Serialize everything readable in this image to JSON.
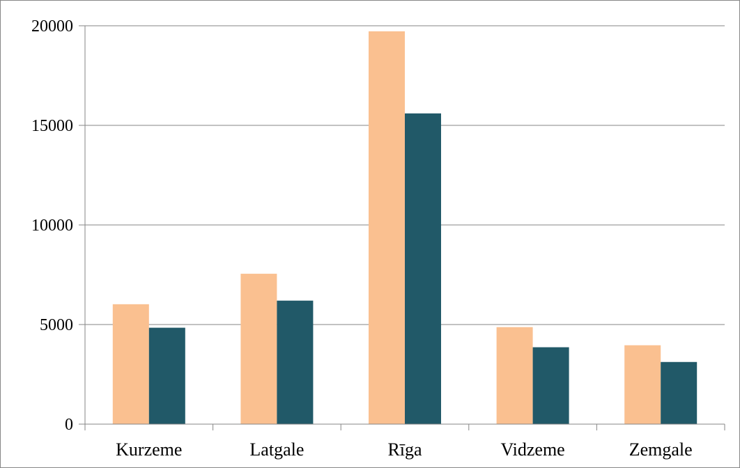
{
  "chart_data": {
    "type": "bar",
    "title": "",
    "xlabel": "",
    "ylabel": "",
    "categories": [
      "Kurzeme",
      "Latgale",
      "Rīga",
      "Vidzeme",
      "Zemgale"
    ],
    "series": [
      {
        "color": "#fac090",
        "values": [
          6020,
          7550,
          19720,
          4870,
          3960
        ]
      },
      {
        "color": "#215968",
        "values": [
          4840,
          6200,
          15600,
          3860,
          3120
        ]
      }
    ],
    "ylim": [
      0,
      20000
    ],
    "yticks": [
      0,
      5000,
      10000,
      15000,
      20000
    ],
    "grid": true,
    "legend": "none"
  }
}
